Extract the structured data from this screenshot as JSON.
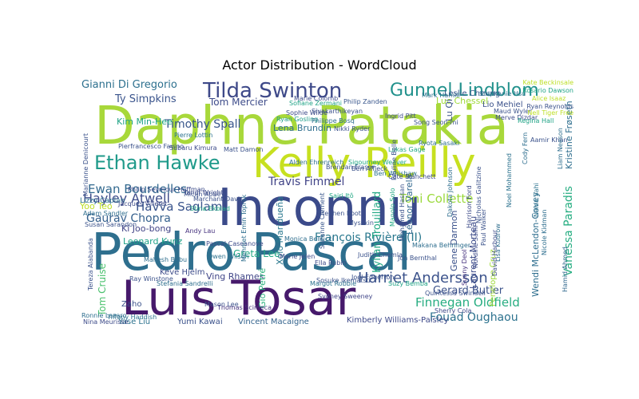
{
  "chart_data": {
    "type": "wordcloud",
    "title": "Actor Distribution - WordCloud",
    "words": [
      {
        "text": "Daphne Patakia",
        "color": "#a8d83a"
      },
      {
        "text": "Inconnu",
        "color": "#3b4a8a"
      },
      {
        "text": "Pedro Pascal",
        "color": "#2e6f8e"
      },
      {
        "text": "Luis Tosar",
        "color": "#46196b"
      },
      {
        "text": "Kelly Reilly",
        "color": "#c7e020"
      },
      {
        "text": "Tilda Swinton",
        "color": "#3e4989"
      },
      {
        "text": "Gunnel Lindblom",
        "color": "#21918c"
      },
      {
        "text": "Ethan Hawke",
        "color": "#1f9a8a"
      },
      {
        "text": "Harriet Andersson",
        "color": "#3b528b"
      },
      {
        "text": "Hayley Atwell",
        "color": "#3e4c8a"
      },
      {
        "text": "Ewan Bourdelles",
        "color": "#31688e"
      },
      {
        "text": "Havva Saglam",
        "color": "#3a548c"
      },
      {
        "text": "Gaurav Chopra",
        "color": "#35608d"
      },
      {
        "text": "Timothy Spall",
        "color": "#39568c"
      },
      {
        "text": "Gianni Di Gregorio",
        "color": "#2d708e"
      },
      {
        "text": "Toni Collette",
        "color": "#9bd93c"
      },
      {
        "text": "Travis Fimmel",
        "color": "#414487"
      },
      {
        "text": "François Rivière (II)",
        "color": "#2a788e"
      },
      {
        "text": "Finnegan Oldfield",
        "color": "#27ad81"
      },
      {
        "text": "Fouad Oughaou",
        "color": "#2c728e"
      },
      {
        "text": "Gerard Butler",
        "color": "#3b528b"
      },
      {
        "text": "Vanessa Paradis",
        "color": "#26ad81"
      },
      {
        "text": "Ty Simpkins",
        "color": "#3a548c"
      },
      {
        "text": "Tom Mercier",
        "color": "#3e4c8a"
      },
      {
        "text": "Kylian Trouillard",
        "color": "#22a884"
      },
      {
        "text": "Tom Cruise",
        "color": "#4ac16d"
      },
      {
        "text": "Greta Lee",
        "color": "#22a884"
      },
      {
        "text": "Ving Rhames",
        "color": "#404688"
      },
      {
        "text": "Leonard Kunz",
        "color": "#1fa188"
      },
      {
        "text": "Ki Joo-bong",
        "color": "#414487"
      },
      {
        "text": "Kim Min-Hee",
        "color": "#20a386"
      },
      {
        "text": "Yoo Teo",
        "color": "#bddf26"
      },
      {
        "text": "Lena Brundin",
        "color": "#2e6e8e"
      },
      {
        "text": "Luc Chessel",
        "color": "#9fda3a"
      },
      {
        "text": "Lio Mehiel",
        "color": "#3b528b"
      },
      {
        "text": "Leslie Cheung",
        "color": "#39568c"
      },
      {
        "text": "Keve Hjelm",
        "color": "#3e4c8a"
      },
      {
        "text": "Yumi Kawai",
        "color": "#3b528b"
      },
      {
        "text": "Vincent Macaigne",
        "color": "#33638d"
      },
      {
        "text": "Kimberly Williams-Paisley",
        "color": "#3e4989"
      },
      {
        "text": "Yase Liu",
        "color": "#2c728e"
      },
      {
        "text": "Zaho",
        "color": "#3b528b"
      },
      {
        "text": "Xolo Maridueña",
        "color": "#2a788e"
      },
      {
        "text": "Lizzy Caplan",
        "color": "#2c728e"
      },
      {
        "text": "Gio Petré",
        "color": "#2db27d"
      },
      {
        "text": "Léonor Varela",
        "color": "#31688e"
      },
      {
        "text": "Kristine Frøseth",
        "color": "#2e6e8e"
      },
      {
        "text": "Gene Darmon",
        "color": "#3b528b"
      },
      {
        "text": "Laurent Morteau",
        "color": "#3e4c8a"
      },
      {
        "text": "Wendi McLendon-Covey",
        "color": "#2e6e8e"
      },
      {
        "text": "Penelope Cruz",
        "color": "#a0da39"
      },
      {
        "text": "Ryan Gosling",
        "color": "#1f9e89"
      },
      {
        "text": "Nikki Ryder",
        "color": "#3b528b"
      },
      {
        "text": "Sunny Deol",
        "color": "#46327e"
      },
      {
        "text": "Stephen Root",
        "color": "#3b528b"
      },
      {
        "text": "Sherry Cola",
        "color": "#3e4989"
      },
      {
        "text": "Naina Sahi",
        "color": "#2c728e"
      },
      {
        "text": "Hamid Ahmed",
        "color": "#31688e"
      },
      {
        "text": "Merve Dizdar",
        "color": "#3e4c8a"
      },
      {
        "text": "Regina Hall",
        "color": "#20a386"
      },
      {
        "text": "Song Seon-mi",
        "color": "#3b528b"
      },
      {
        "text": "Ryota Sasaki",
        "color": "#2e6e8e"
      },
      {
        "text": "Sigourney Weaver",
        "color": "#22a884"
      },
      {
        "text": "Sosuke Ikematsu",
        "color": "#3b528b"
      },
      {
        "text": "Margot Robbie",
        "color": "#2c728e"
      },
      {
        "text": "Sydney Sweeney",
        "color": "#404688"
      },
      {
        "text": "Owen Wilson",
        "color": "#2c728e"
      },
      {
        "text": "Thomas Scimeca",
        "color": "#46327e"
      },
      {
        "text": "Ray Winstone",
        "color": "#3b528b"
      },
      {
        "text": "Stefania Sandrelli",
        "color": "#2e6e8e"
      },
      {
        "text": "Pascal Caseanove",
        "color": "#3e4c8a"
      },
      {
        "text": "Philip Zanden",
        "color": "#39568c"
      },
      {
        "text": "Marie Colomb",
        "color": "#3e4c8a"
      },
      {
        "text": "Sofiane Zermani",
        "color": "#20a386"
      },
      {
        "text": "Sivakarthikeyan",
        "color": "#3b528b"
      },
      {
        "text": "Philippe Bosq",
        "color": "#2e6e8e"
      },
      {
        "text": "Suzanne Clément",
        "color": "#39568c"
      },
      {
        "text": "Micah Abbey",
        "color": "#3b528b"
      },
      {
        "text": "Subaru Kimura",
        "color": "#3e4c8a"
      },
      {
        "text": "Pierre Lottin",
        "color": "#2c728e"
      },
      {
        "text": "Matt Damon",
        "color": "#3b528b"
      },
      {
        "text": "Mahesh Babu",
        "color": "#2e6e8e"
      },
      {
        "text": "Andy Lau",
        "color": "#46327e"
      },
      {
        "text": "Philip Seymour Hoffman",
        "color": "#3e4c8a"
      },
      {
        "text": "Stina Ekblad",
        "color": "#22a884"
      },
      {
        "text": "Tereza Alabanda",
        "color": "#3b528b"
      },
      {
        "text": "Ronnie Lazaro",
        "color": "#2e6e8e"
      },
      {
        "text": "Nina Meurisse",
        "color": "#3e4c8a"
      },
      {
        "text": "Mason Lee",
        "color": "#3b528b"
      },
      {
        "text": "Suzy Bemba",
        "color": "#20a386"
      },
      {
        "text": "Quintessa Swindell",
        "color": "#3b528b"
      },
      {
        "text": "Makana Behringer",
        "color": "#2e6e8e"
      },
      {
        "text": "Nordine Salhi",
        "color": "#3e4c8a"
      },
      {
        "text": "Mark Hamill",
        "color": "#2c728e"
      },
      {
        "text": "Sairi Itô",
        "color": "#22a884"
      },
      {
        "text": "Nicholas Galitzine",
        "color": "#3b528b"
      },
      {
        "text": "Mehmet Emin Toprak",
        "color": "#2e6e8e"
      },
      {
        "text": "Sophie Wilde",
        "color": "#3e4c8a"
      },
      {
        "text": "Mysskin",
        "color": "#3b528b"
      },
      {
        "text": "Monica Bellucci",
        "color": "#2e6e8e"
      },
      {
        "text": "Marie Jelen",
        "color": "#3e4c8a"
      },
      {
        "text": "Judith Chemla",
        "color": "#3b528b"
      },
      {
        "text": "Stephanie Hsu",
        "color": "#2c728e"
      },
      {
        "text": "Maud Wyler",
        "color": "#3b528b"
      },
      {
        "text": "Manolo Solo",
        "color": "#22a884"
      },
      {
        "text": "Alice Isaaz",
        "color": "#bddf26"
      },
      {
        "text": "Rosario Dawson",
        "color": "#20a386"
      },
      {
        "text": "Kate Beckinsale",
        "color": "#bddf26"
      },
      {
        "text": "Nell Tiger Free",
        "color": "#bddf26"
      },
      {
        "text": "Marianne Denicourt",
        "color": "#3b528b"
      },
      {
        "text": "Pierfrancesco Favino",
        "color": "#3b528b"
      },
      {
        "text": "Adam Sandler",
        "color": "#2e6e8e"
      },
      {
        "text": "Susan Sarandon",
        "color": "#3b528b"
      },
      {
        "text": "Tandi Wright",
        "color": "#3e4c8a"
      },
      {
        "text": "Aamir Khan",
        "color": "#3b528b"
      },
      {
        "text": "Lukas Gage",
        "color": "#22a884"
      },
      {
        "text": "Ingrid Pitt",
        "color": "#3e4c8a"
      },
      {
        "text": "Lu Qi",
        "color": "#3b528b"
      },
      {
        "text": "Nicole Kidman",
        "color": "#2e6e8e"
      },
      {
        "text": "Jon Bernthal",
        "color": "#3b528b"
      },
      {
        "text": "Jacques Villeret",
        "color": "#3e4c8a"
      },
      {
        "text": "Marchant Davis",
        "color": "#3b528b"
      },
      {
        "text": "Cody Fern",
        "color": "#2e6e8e"
      },
      {
        "text": "Ella Rubin",
        "color": "#3e4c8a"
      },
      {
        "text": "Joel Edgerton",
        "color": "#3b528b"
      },
      {
        "text": "Noel Mohammed",
        "color": "#2c728e"
      },
      {
        "text": "Paul Walker",
        "color": "#3b528b"
      },
      {
        "text": "Lisa Kudrow",
        "color": "#2e6e8e"
      },
      {
        "text": "David Harbour",
        "color": "#3e4c8a"
      },
      {
        "text": "Ryan Reynolds",
        "color": "#3b528b"
      },
      {
        "text": "Liam Neeson",
        "color": "#2e6e8e"
      },
      {
        "text": "Brendan Fraser",
        "color": "#3b528b"
      },
      {
        "text": "Ben Whishaw",
        "color": "#2c728e"
      },
      {
        "text": "Mohamed Hassan",
        "color": "#3b528b"
      },
      {
        "text": "Dakota Johnson",
        "color": "#2e6e8e"
      },
      {
        "text": "Harrison Ford",
        "color": "#3e4c8a"
      },
      {
        "text": "Pauline Belle",
        "color": "#3b528b"
      },
      {
        "text": "Alden Ehrenreich",
        "color": "#2e6e8e"
      },
      {
        "text": "Tiffany Haddish",
        "color": "#2c728e"
      },
      {
        "text": "Ben Affleck",
        "color": "#3b528b"
      },
      {
        "text": "Cate Blanchett",
        "color": "#3e4c8a"
      }
    ]
  }
}
